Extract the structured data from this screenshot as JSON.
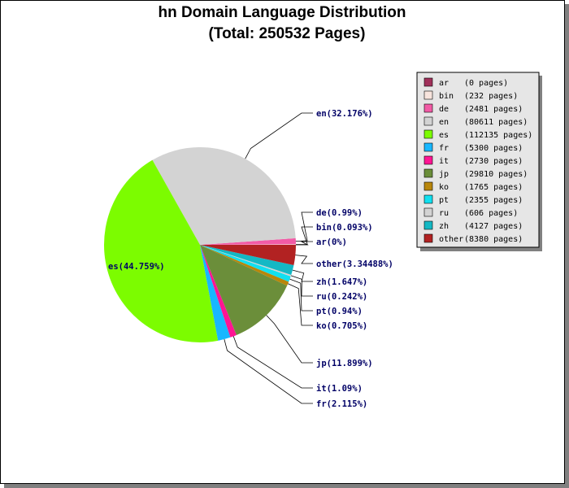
{
  "chart_data": {
    "type": "pie",
    "title": "hn Domain Language Distribution",
    "subtitle": "(Total: 250532 Pages)",
    "slices": [
      {
        "name": "ar",
        "pages": 0,
        "pages_text": "(0 pages)",
        "label": "ar(0%)",
        "color": "#a0305a"
      },
      {
        "name": "bin",
        "pages": 232,
        "pages_text": "(232 pages)",
        "label": "bin(0.093%)",
        "color": "#f7e4dd"
      },
      {
        "name": "de",
        "pages": 2481,
        "pages_text": "(2481 pages)",
        "label": "de(0.99%)",
        "color": "#f25ba6"
      },
      {
        "name": "en",
        "pages": 80611,
        "pages_text": "(80611 pages)",
        "label": "en(32.176%)",
        "color": "#d3d3d3"
      },
      {
        "name": "es",
        "pages": 112135,
        "pages_text": "(112135 pages)",
        "label": "es(44.759%)",
        "color": "#7cfc00"
      },
      {
        "name": "fr",
        "pages": 5300,
        "pages_text": "(5300 pages)",
        "label": "fr(2.115%)",
        "color": "#18b7ff"
      },
      {
        "name": "it",
        "pages": 2730,
        "pages_text": "(2730 pages)",
        "label": "it(1.09%)",
        "color": "#ff1493"
      },
      {
        "name": "jp",
        "pages": 29810,
        "pages_text": "(29810 pages)",
        "label": "jp(11.899%)",
        "color": "#6b8e3a"
      },
      {
        "name": "ko",
        "pages": 1765,
        "pages_text": "(1765 pages)",
        "label": "ko(0.705%)",
        "color": "#b8860b"
      },
      {
        "name": "pt",
        "pages": 2355,
        "pages_text": "(2355 pages)",
        "label": "pt(0.94%)",
        "color": "#11e0f0"
      },
      {
        "name": "ru",
        "pages": 606,
        "pages_text": "(606 pages)",
        "label": "ru(0.242%)",
        "color": "#d3d3d3"
      },
      {
        "name": "zh",
        "pages": 4127,
        "pages_text": "(4127 pages)",
        "label": "zh(1.647%)",
        "color": "#14b8c4"
      },
      {
        "name": "other",
        "pages": 8380,
        "pages_text": "(8380 pages)",
        "label": "other(3.34488%)",
        "color": "#b22222"
      }
    ],
    "legend_position": "top-right"
  }
}
